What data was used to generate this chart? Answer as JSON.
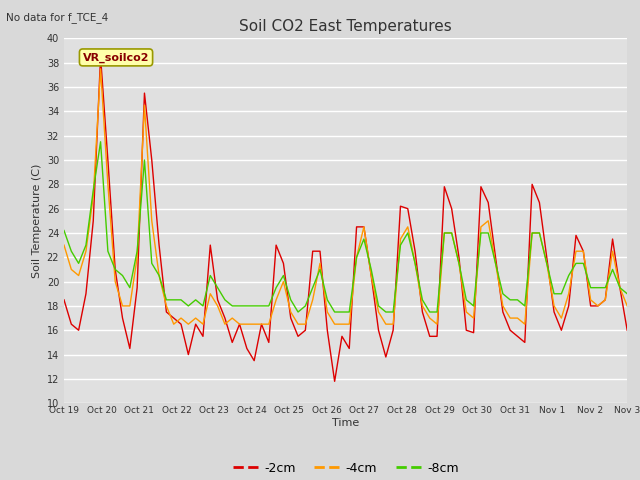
{
  "title": "Soil CO2 East Temperatures",
  "subtitle": "No data for f_TCE_4",
  "ylabel": "Soil Temperature (C)",
  "xlabel": "Time",
  "annotation": "VR_soilco2",
  "ylim": [
    10,
    40
  ],
  "yticks": [
    10,
    12,
    14,
    16,
    18,
    20,
    22,
    24,
    26,
    28,
    30,
    32,
    34,
    36,
    38,
    40
  ],
  "xtick_labels": [
    "Oct 19",
    "Oct 20",
    "Oct 21",
    "Oct 22",
    "Oct 23",
    "Oct 24",
    "Oct 25",
    "Oct 26",
    "Oct 27",
    "Oct 28",
    "Oct 29",
    "Oct 30",
    "Oct 31",
    "Nov 1",
    "Nov 2",
    "Nov 3"
  ],
  "colors": {
    "red": "#dd0000",
    "orange": "#ff9900",
    "green": "#44cc00"
  },
  "legend_labels": [
    "-2cm",
    "-4cm",
    "-8cm"
  ],
  "fig_bg_color": "#d9d9d9",
  "plot_bg": "#e0e0e0",
  "grid_color": "#ffffff",
  "series_2cm": [
    18.5,
    16.5,
    16.0,
    19.0,
    25.0,
    38.5,
    30.0,
    21.0,
    17.0,
    14.5,
    19.5,
    35.5,
    30.0,
    23.0,
    17.5,
    17.0,
    16.5,
    14.0,
    16.5,
    15.5,
    23.0,
    18.5,
    17.0,
    15.0,
    16.5,
    14.5,
    13.5,
    16.5,
    15.0,
    23.0,
    21.5,
    17.0,
    15.5,
    16.0,
    22.5,
    22.5,
    16.0,
    11.8,
    15.5,
    14.5,
    24.5,
    24.5,
    20.5,
    16.0,
    13.8,
    16.0,
    26.2,
    26.0,
    22.5,
    17.5,
    15.5,
    15.5,
    27.8,
    26.0,
    22.0,
    16.0,
    15.8,
    27.8,
    26.5,
    22.0,
    17.5,
    16.0,
    15.5,
    15.0,
    28.0,
    26.5,
    22.0,
    17.5,
    16.0,
    18.0,
    23.8,
    22.5,
    18.0,
    18.0,
    18.5,
    23.5,
    19.5,
    16.0
  ],
  "series_4cm": [
    23.0,
    21.0,
    20.5,
    22.5,
    27.0,
    37.5,
    28.0,
    20.0,
    18.0,
    18.0,
    22.0,
    34.5,
    25.0,
    20.5,
    18.0,
    16.5,
    17.0,
    16.5,
    17.0,
    16.5,
    19.0,
    18.0,
    16.5,
    17.0,
    16.5,
    16.5,
    16.5,
    16.5,
    16.5,
    18.5,
    20.0,
    17.5,
    16.5,
    16.5,
    18.5,
    21.5,
    17.5,
    16.5,
    16.5,
    16.5,
    22.0,
    24.5,
    20.5,
    17.5,
    16.5,
    16.5,
    23.5,
    24.5,
    21.5,
    18.0,
    17.0,
    16.5,
    24.0,
    24.0,
    21.5,
    17.5,
    17.0,
    24.5,
    25.0,
    21.5,
    18.0,
    17.0,
    17.0,
    16.5,
    24.0,
    24.0,
    21.5,
    18.0,
    17.0,
    19.0,
    22.5,
    22.5,
    18.5,
    18.0,
    18.5,
    22.5,
    19.5,
    18.0
  ],
  "series_8cm": [
    24.2,
    22.5,
    21.5,
    23.0,
    27.5,
    31.5,
    22.5,
    21.0,
    20.5,
    19.5,
    22.5,
    30.0,
    21.5,
    20.5,
    18.5,
    18.5,
    18.5,
    18.0,
    18.5,
    18.0,
    20.5,
    19.5,
    18.5,
    18.0,
    18.0,
    18.0,
    18.0,
    18.0,
    18.0,
    19.5,
    20.5,
    18.5,
    17.5,
    18.0,
    19.5,
    21.0,
    18.5,
    17.5,
    17.5,
    17.5,
    22.0,
    23.5,
    21.0,
    18.0,
    17.5,
    17.5,
    23.0,
    24.0,
    21.5,
    18.5,
    17.5,
    17.5,
    24.0,
    24.0,
    21.5,
    18.5,
    18.0,
    24.0,
    24.0,
    21.5,
    19.0,
    18.5,
    18.5,
    18.0,
    24.0,
    24.0,
    21.5,
    19.0,
    19.0,
    20.5,
    21.5,
    21.5,
    19.5,
    19.5,
    19.5,
    21.0,
    19.5,
    19.0
  ]
}
